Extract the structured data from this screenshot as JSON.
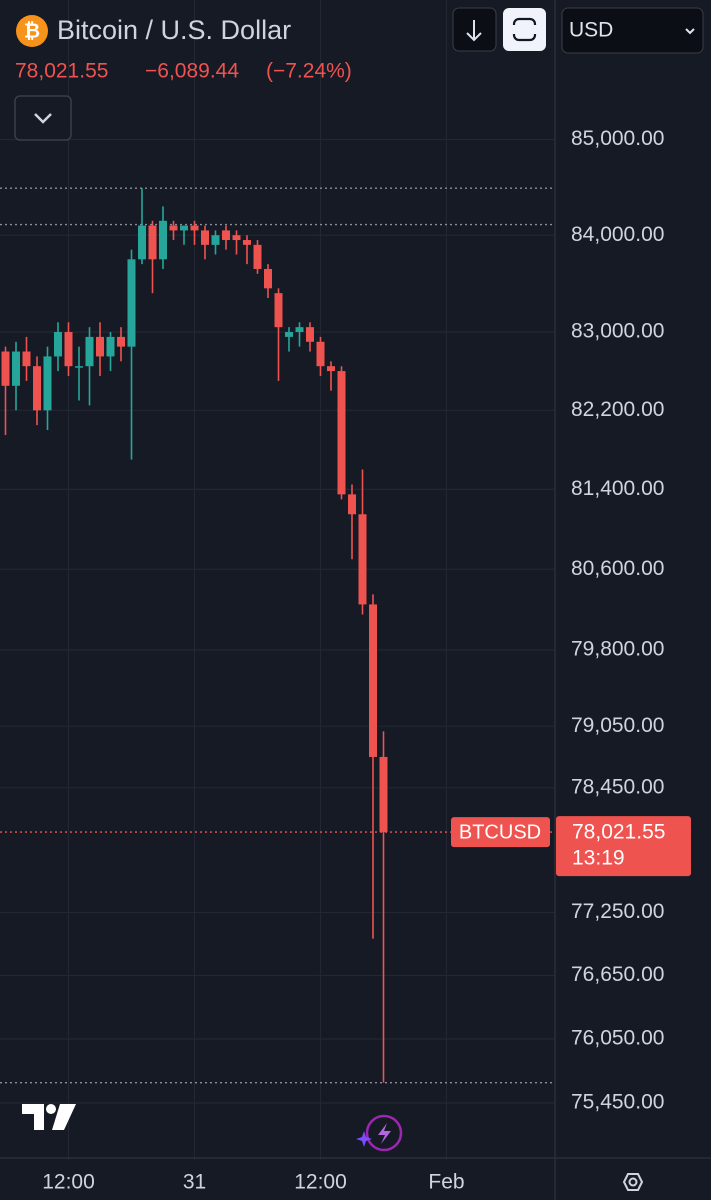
{
  "header": {
    "title": "Bitcoin / U.S. Dollar",
    "price": "78,021.55",
    "change": "−6,089.44",
    "change_percent": "(−7.24%)",
    "currency": "USD"
  },
  "price_label": {
    "symbol": "BTCUSD",
    "price": "78,021.55",
    "countdown": "13:19"
  },
  "chart_data": {
    "type": "candlestick",
    "log_scale": true,
    "grid": true,
    "up_color": "#26a69a",
    "down_color": "#ef5350",
    "categories": [
      null,
      null,
      null,
      null,
      null,
      null,
      "12:00",
      null,
      null,
      null,
      null,
      null,
      null,
      null,
      null,
      null,
      null,
      null,
      "31",
      null,
      null,
      null,
      null,
      null,
      null,
      null,
      null,
      null,
      null,
      null,
      "12:00",
      null,
      null,
      null,
      null,
      null,
      null,
      null,
      null,
      null,
      null,
      null,
      "Feb"
    ],
    "open": [
      82800,
      82450,
      82800,
      82650,
      82200,
      82750,
      83000,
      82650,
      82650,
      82950,
      82750,
      82950,
      82850,
      83750,
      84100,
      83750,
      84100,
      84050,
      84100,
      84050,
      83900,
      84050,
      84000,
      83950,
      83900,
      83650,
      83400,
      82950,
      83000,
      83050,
      82900,
      82650,
      82600,
      81350,
      81150,
      80250,
      78750,
      null,
      null,
      null,
      null,
      null,
      null
    ],
    "high": [
      82850,
      82900,
      82950,
      82750,
      82850,
      83100,
      83100,
      82850,
      83050,
      83100,
      83000,
      83050,
      83850,
      84490,
      84150,
      84300,
      84150,
      84100,
      84150,
      84100,
      84050,
      84100,
      84050,
      84000,
      83950,
      83700,
      83450,
      83050,
      83100,
      83100,
      82950,
      82700,
      82650,
      81450,
      81600,
      80350,
      79000,
      null,
      null,
      null,
      null,
      null,
      null
    ],
    "low": [
      81950,
      82200,
      82500,
      82050,
      82000,
      82600,
      82550,
      82300,
      82250,
      82550,
      82600,
      82700,
      81700,
      83700,
      83400,
      83650,
      83950,
      83900,
      83900,
      83750,
      83800,
      83850,
      83800,
      83700,
      83600,
      83350,
      82500,
      82800,
      82850,
      82800,
      82550,
      82400,
      81300,
      80700,
      80150,
      77000,
      75640,
      null,
      null,
      null,
      null,
      null,
      null
    ],
    "close": [
      82450,
      82800,
      82650,
      82200,
      82750,
      83000,
      82650,
      82650,
      82950,
      82750,
      82950,
      82850,
      83750,
      84100,
      83750,
      84150,
      84050,
      84100,
      84050,
      83900,
      84000,
      83950,
      83950,
      83900,
      83650,
      83450,
      83050,
      83000,
      83050,
      82900,
      82650,
      82600,
      81350,
      81150,
      80250,
      78750,
      78021.55,
      null,
      null,
      null,
      null,
      null,
      null
    ],
    "price_lines": [
      84490,
      84110.99,
      75640
    ],
    "ylim": [
      74920,
      86480
    ],
    "yticks": [
      {
        "value": 85000,
        "label": "85,000.00"
      },
      {
        "value": 84000,
        "label": "84,000.00"
      },
      {
        "value": 83000,
        "label": "83,000.00"
      },
      {
        "value": 82200,
        "label": "82,200.00"
      },
      {
        "value": 81400,
        "label": "81,400.00"
      },
      {
        "value": 80600,
        "label": "80,600.00"
      },
      {
        "value": 79800,
        "label": "79,800.00"
      },
      {
        "value": 79050,
        "label": "79,050.00"
      },
      {
        "value": 78450,
        "label": "78,450.00"
      },
      {
        "value": 77250,
        "label": "77,250.00"
      },
      {
        "value": 76650,
        "label": "76,650.00"
      },
      {
        "value": 76050,
        "label": "76,050.00"
      },
      {
        "value": 75450,
        "label": "75,450.00"
      }
    ]
  }
}
